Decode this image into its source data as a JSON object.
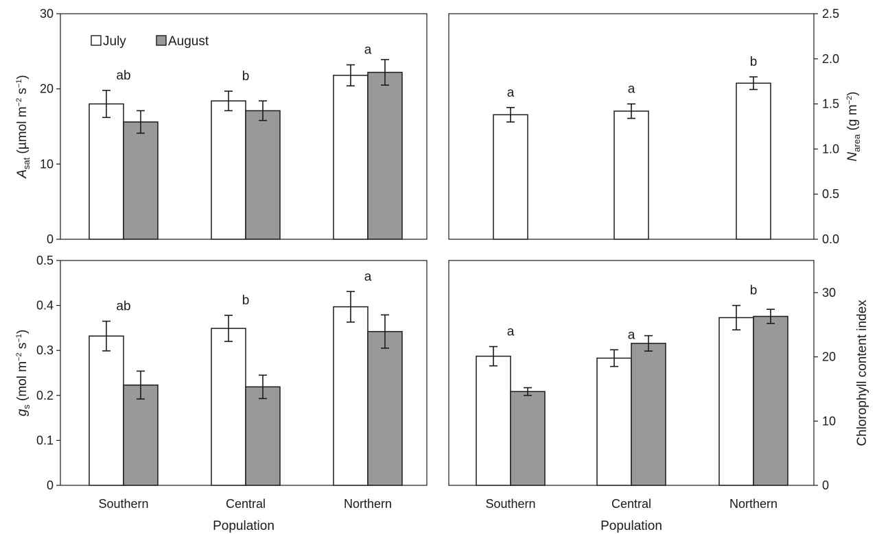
{
  "chart_data": [
    {
      "id": "asat",
      "type": "bar",
      "categories": [
        "Southern",
        "Central",
        "Northern"
      ],
      "series": [
        {
          "name": "July",
          "values": [
            18.0,
            18.4,
            21.8
          ],
          "errors": [
            1.8,
            1.3,
            1.4
          ]
        },
        {
          "name": "August",
          "values": [
            15.6,
            17.1,
            22.2
          ],
          "errors": [
            1.5,
            1.3,
            1.7
          ]
        }
      ],
      "letters": [
        "ab",
        "b",
        "a"
      ],
      "ylim": [
        0,
        30
      ],
      "yticks": [
        0,
        10,
        20,
        30
      ],
      "ytick_labels": [
        "0",
        "10",
        "20",
        "30"
      ],
      "ylabel": {
        "main": "A",
        "sub": "sat",
        "rest": " (µmol m",
        "sup1": "−2",
        "mid": " s",
        "sup2": "−1",
        "end": ")"
      },
      "legend": {
        "position": "top-left"
      },
      "xlabel": ""
    },
    {
      "id": "narea",
      "type": "bar",
      "categories": [
        "Southern",
        "Central",
        "Northern"
      ],
      "series": [
        {
          "name": "",
          "values": [
            1.38,
            1.42,
            1.73
          ],
          "errors": [
            0.08,
            0.08,
            0.07
          ]
        }
      ],
      "letters": [
        "a",
        "a",
        "b"
      ],
      "ylim": [
        0,
        2.5
      ],
      "yticks": [
        0,
        0.5,
        1.0,
        1.5,
        2.0,
        2.5
      ],
      "ytick_labels": [
        "0.0",
        "0.5",
        "1.0",
        "1.5",
        "2.0",
        "2.5"
      ],
      "ylabel": {
        "main": "N",
        "sub": "area",
        "rest": " (g m",
        "sup1": "−2",
        "end": ")"
      },
      "xlabel": ""
    },
    {
      "id": "gs",
      "type": "bar",
      "categories": [
        "Southern",
        "Central",
        "Northern"
      ],
      "series": [
        {
          "name": "July",
          "values": [
            0.332,
            0.349,
            0.397
          ],
          "errors": [
            0.033,
            0.029,
            0.034
          ]
        },
        {
          "name": "August",
          "values": [
            0.223,
            0.219,
            0.342
          ],
          "errors": [
            0.031,
            0.026,
            0.037
          ]
        }
      ],
      "letters": [
        "ab",
        "b",
        "a"
      ],
      "ylim": [
        0,
        0.5
      ],
      "yticks": [
        0,
        0.1,
        0.2,
        0.3,
        0.4,
        0.5
      ],
      "ytick_labels": [
        "0",
        "0.1",
        "0.2",
        "0.3",
        "0.4",
        "0.5"
      ],
      "ylabel": {
        "main": "g",
        "sub": "s",
        "rest": " (mol m",
        "sup1": "−2",
        "mid": " s",
        "sup2": "−1",
        "end": ")"
      },
      "xlabel": "Population"
    },
    {
      "id": "chl",
      "type": "bar",
      "categories": [
        "Southern",
        "Central",
        "Northern"
      ],
      "series": [
        {
          "name": "July",
          "values": [
            20.1,
            19.8,
            26.1
          ],
          "errors": [
            1.5,
            1.3,
            1.9
          ]
        },
        {
          "name": "August",
          "values": [
            14.6,
            22.1,
            26.3
          ],
          "errors": [
            0.6,
            1.2,
            1.1
          ]
        }
      ],
      "letters": [
        "a",
        "a",
        "b"
      ],
      "ylim": [
        0,
        35
      ],
      "yticks": [
        0,
        10,
        20,
        30
      ],
      "ytick_labels": [
        "0",
        "10",
        "20",
        "30"
      ],
      "ylabel": {
        "main": "Chlorophyll content index"
      },
      "xlabel": "Population"
    }
  ],
  "colors": {
    "july": "#ffffff",
    "august": "#999999",
    "stroke": "#1a1a1a"
  }
}
